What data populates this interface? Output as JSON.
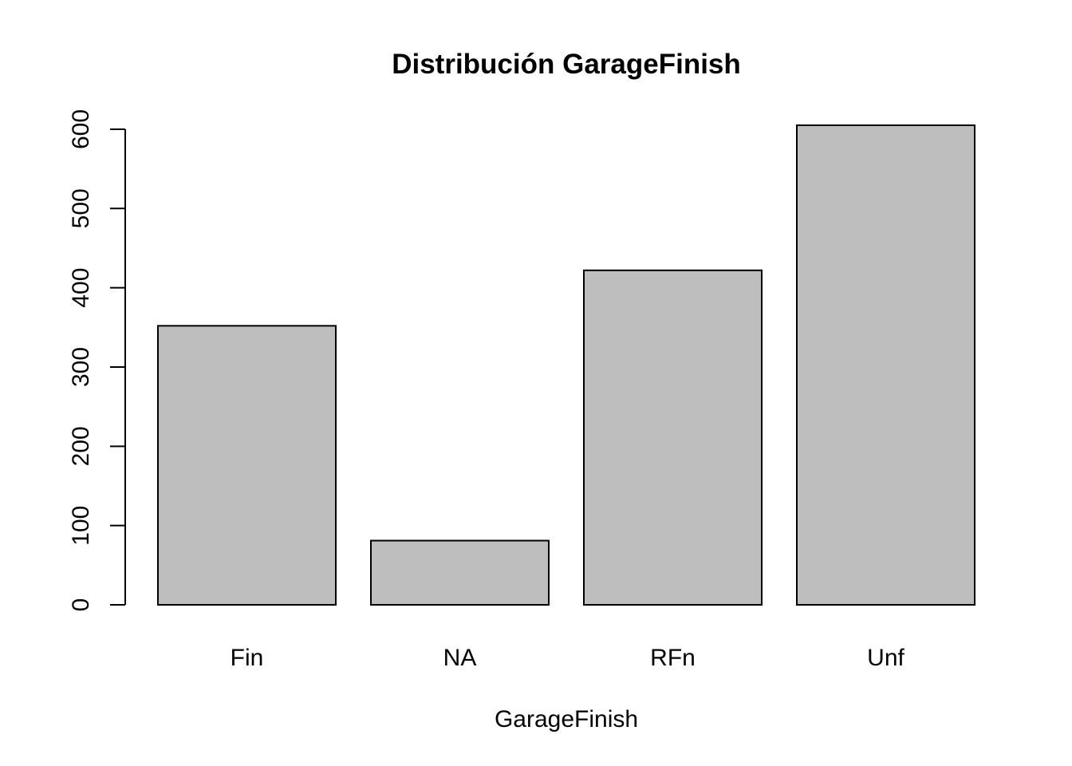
{
  "chart_data": {
    "type": "bar",
    "title": "Distribución GarageFinish",
    "xlabel": "GarageFinish",
    "ylabel": "",
    "categories": [
      "Fin",
      "NA",
      "RFn",
      "Unf"
    ],
    "values": [
      352,
      81,
      422,
      605
    ],
    "ylim": [
      0,
      605
    ],
    "yticks": [
      0,
      100,
      200,
      300,
      400,
      500,
      600
    ],
    "grid": false,
    "legend": "none",
    "colors": {
      "bar_fill": "#bebebe",
      "bar_stroke": "#000000",
      "axis": "#000000",
      "text": "#000000",
      "background": "#ffffff"
    }
  }
}
